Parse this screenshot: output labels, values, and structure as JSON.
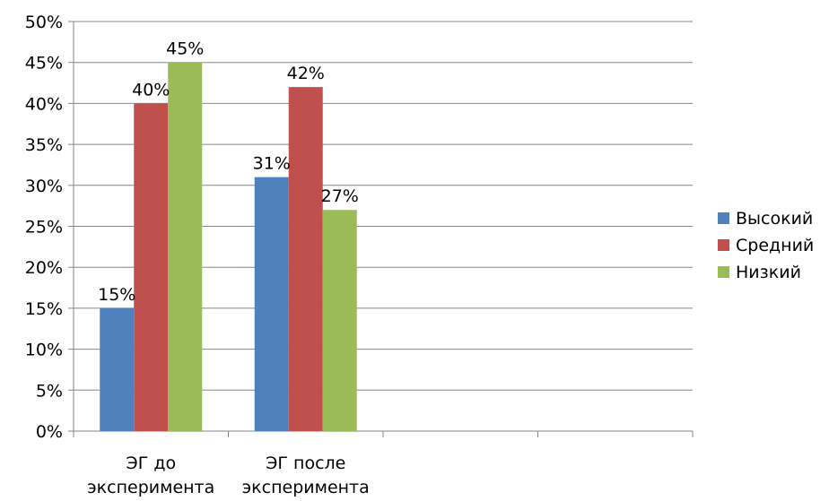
{
  "chart_data": {
    "type": "bar",
    "title": "",
    "xlabel": "",
    "ylabel": "",
    "ylim": [
      0,
      0.5
    ],
    "y_ticks": [
      "0%",
      "5%",
      "10%",
      "15%",
      "20%",
      "25%",
      "30%",
      "35%",
      "40%",
      "45%",
      "50%"
    ],
    "categories": [
      [
        "ЭГ до",
        "эксперимента"
      ],
      [
        "ЭГ после",
        "эксперимента"
      ],
      [],
      []
    ],
    "series": [
      {
        "name": "Высокий",
        "color": "#4F81BD",
        "values": [
          0.15,
          0.31,
          null,
          null
        ],
        "labels": [
          "15%",
          "31%",
          "",
          ""
        ]
      },
      {
        "name": "Средний",
        "color": "#C0504D",
        "values": [
          0.4,
          0.42,
          null,
          null
        ],
        "labels": [
          "40%",
          "42%",
          "",
          ""
        ]
      },
      {
        "name": "Низкий",
        "color": "#9BBB59",
        "values": [
          0.45,
          0.27,
          null,
          null
        ],
        "labels": [
          "45%",
          "27%",
          "",
          ""
        ]
      }
    ],
    "grid": true,
    "legend": "right"
  }
}
